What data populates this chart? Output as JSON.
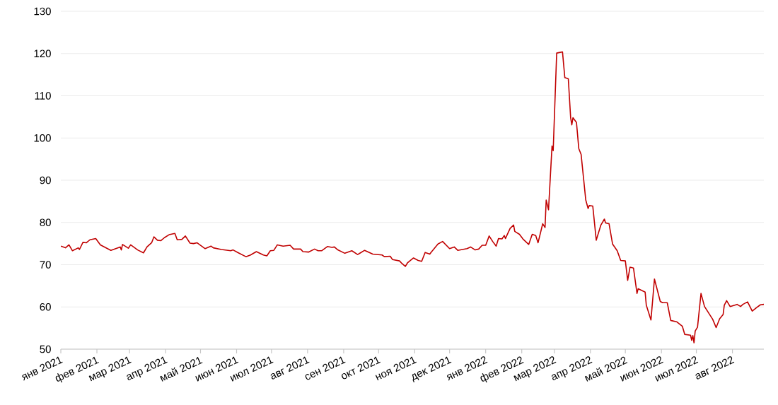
{
  "chart_data": {
    "type": "line",
    "color": "#c00000",
    "grid": "y",
    "xlim": [
      "2021-01-01",
      "2022-08-28"
    ],
    "xticks": [
      {
        "value": "2021-01-01",
        "label": "янв 2021"
      },
      {
        "value": "2021-02-01",
        "label": "фев 2021"
      },
      {
        "value": "2021-03-01",
        "label": "мар 2021"
      },
      {
        "value": "2021-04-01",
        "label": "апр 2021"
      },
      {
        "value": "2021-05-01",
        "label": "май 2021"
      },
      {
        "value": "2021-06-01",
        "label": "июн 2021"
      },
      {
        "value": "2021-07-01",
        "label": "июл 2021"
      },
      {
        "value": "2021-08-01",
        "label": "авг 2021"
      },
      {
        "value": "2021-09-01",
        "label": "сен 2021"
      },
      {
        "value": "2021-10-01",
        "label": "окт 2021"
      },
      {
        "value": "2021-11-01",
        "label": "ноя 2021"
      },
      {
        "value": "2021-12-01",
        "label": "дек 2021"
      },
      {
        "value": "2022-01-01",
        "label": "янв 2022"
      },
      {
        "value": "2022-02-01",
        "label": "фев 2022"
      },
      {
        "value": "2022-03-01",
        "label": "мар 2022"
      },
      {
        "value": "2022-04-01",
        "label": "апр 2022"
      },
      {
        "value": "2022-05-01",
        "label": "май 2022"
      },
      {
        "value": "2022-06-01",
        "label": "июн 2022"
      },
      {
        "value": "2022-07-01",
        "label": "июл 2022"
      },
      {
        "value": "2022-08-01",
        "label": "авг 2022"
      }
    ],
    "ylim": [
      50,
      130
    ],
    "yticks": [
      50,
      60,
      70,
      80,
      90,
      100,
      110,
      120,
      130
    ],
    "x": [
      "2021-01-01",
      "2021-01-05",
      "2021-01-08",
      "2021-01-11",
      "2021-01-16",
      "2021-01-17",
      "2021-01-20",
      "2021-01-23",
      "2021-01-26",
      "2021-01-31",
      "2021-02-04",
      "2021-02-13",
      "2021-02-21",
      "2021-02-22",
      "2021-02-23",
      "2021-02-28",
      "2021-03-02",
      "2021-03-08",
      "2021-03-13",
      "2021-03-16",
      "2021-03-20",
      "2021-03-22",
      "2021-03-25",
      "2021-03-28",
      "2021-03-31",
      "2021-04-04",
      "2021-04-09",
      "2021-04-11",
      "2021-04-15",
      "2021-04-18",
      "2021-04-22",
      "2021-04-25",
      "2021-04-28",
      "2021-04-30",
      "2021-05-05",
      "2021-05-10",
      "2021-05-12",
      "2021-05-19",
      "2021-05-27",
      "2021-05-29",
      "2021-06-02",
      "2021-06-09",
      "2021-06-13",
      "2021-06-18",
      "2021-06-24",
      "2021-06-27",
      "2021-06-30",
      "2021-07-03",
      "2021-07-06",
      "2021-07-11",
      "2021-07-17",
      "2021-07-20",
      "2021-07-26",
      "2021-07-28",
      "2021-08-02",
      "2021-08-07",
      "2021-08-10",
      "2021-08-13",
      "2021-08-18",
      "2021-08-22",
      "2021-08-24",
      "2021-08-27",
      "2021-09-02",
      "2021-09-08",
      "2021-09-13",
      "2021-09-19",
      "2021-09-26",
      "2021-10-04",
      "2021-10-06",
      "2021-10-11",
      "2021-10-13",
      "2021-10-19",
      "2021-10-21",
      "2021-10-24",
      "2021-10-26",
      "2021-10-31",
      "2021-11-04",
      "2021-11-07",
      "2021-11-10",
      "2021-11-14",
      "2021-11-15",
      "2021-11-21",
      "2021-11-25",
      "2021-12-01",
      "2021-12-05",
      "2021-12-08",
      "2021-12-16",
      "2021-12-19",
      "2021-12-23",
      "2021-12-26",
      "2021-12-29",
      "2022-01-01",
      "2022-01-04",
      "2022-01-07",
      "2022-01-10",
      "2022-01-12",
      "2022-01-15",
      "2022-01-17",
      "2022-01-18",
      "2022-01-22",
      "2022-01-25",
      "2022-01-26",
      "2022-01-30",
      "2022-02-02",
      "2022-02-07",
      "2022-02-10",
      "2022-02-13",
      "2022-02-15",
      "2022-02-19",
      "2022-02-21",
      "2022-02-22",
      "2022-02-24",
      "2022-02-27",
      "2022-02-28",
      "2022-03-03",
      "2022-03-08",
      "2022-03-10",
      "2022-03-13",
      "2022-03-15",
      "2022-03-16",
      "2022-03-17",
      "2022-03-20",
      "2022-03-22",
      "2022-03-24",
      "2022-03-28",
      "2022-03-30",
      "2022-03-31",
      "2022-04-03",
      "2022-04-06",
      "2022-04-10",
      "2022-04-13",
      "2022-04-14",
      "2022-04-17",
      "2022-04-20",
      "2022-04-24",
      "2022-04-27",
      "2022-05-01",
      "2022-05-03",
      "2022-05-05",
      "2022-05-08",
      "2022-05-11",
      "2022-05-12",
      "2022-05-18",
      "2022-05-19",
      "2022-05-23",
      "2022-05-26",
      "2022-05-31",
      "2022-06-02",
      "2022-06-06",
      "2022-06-09",
      "2022-06-14",
      "2022-06-19",
      "2022-06-21",
      "2022-06-26",
      "2022-06-27",
      "2022-06-28",
      "2022-06-29",
      "2022-06-30",
      "2022-07-02",
      "2022-07-05",
      "2022-07-08",
      "2022-07-11",
      "2022-07-15",
      "2022-07-18",
      "2022-07-21",
      "2022-07-24",
      "2022-07-25",
      "2022-07-27",
      "2022-07-30",
      "2022-08-05",
      "2022-08-08",
      "2022-08-10",
      "2022-08-14",
      "2022-08-18",
      "2022-08-22",
      "2022-08-25",
      "2022-08-28"
    ],
    "values": [
      74.4,
      74.0,
      74.7,
      73.3,
      74.0,
      73.6,
      75.3,
      75.2,
      75.9,
      76.2,
      74.7,
      73.4,
      74.2,
      73.5,
      74.8,
      73.9,
      74.7,
      73.5,
      72.8,
      74.2,
      75.2,
      76.6,
      75.8,
      75.7,
      76.4,
      77.1,
      77.4,
      75.9,
      76.0,
      76.8,
      75.1,
      75.0,
      75.2,
      74.8,
      73.8,
      74.4,
      74.0,
      73.6,
      73.3,
      73.5,
      72.9,
      71.9,
      72.3,
      73.1,
      72.3,
      72.1,
      73.3,
      73.4,
      74.7,
      74.4,
      74.6,
      73.7,
      73.7,
      73.1,
      73.0,
      73.7,
      73.3,
      73.3,
      74.3,
      74.1,
      74.2,
      73.5,
      72.7,
      73.3,
      72.4,
      73.4,
      72.5,
      72.3,
      71.9,
      72.0,
      71.2,
      70.9,
      70.3,
      69.6,
      70.5,
      71.6,
      71.0,
      70.8,
      72.9,
      72.5,
      72.9,
      74.9,
      75.5,
      73.8,
      74.2,
      73.4,
      73.8,
      74.2,
      73.5,
      73.7,
      74.6,
      74.6,
      76.8,
      75.5,
      74.4,
      76.2,
      76.1,
      76.9,
      76.2,
      78.6,
      79.4,
      77.9,
      77.2,
      76.1,
      74.8,
      77.2,
      76.9,
      75.2,
      79.7,
      78.8,
      85.3,
      83.0,
      98.1,
      97.0,
      120.1,
      120.4,
      114.3,
      114.0,
      104.8,
      103.1,
      104.8,
      103.7,
      97.5,
      96.1,
      85.3,
      83.3,
      84.0,
      83.9,
      75.8,
      79.4,
      80.8,
      79.9,
      79.7,
      74.9,
      73.3,
      71.0,
      70.9,
      66.3,
      69.4,
      69.2,
      63.2,
      64.3,
      63.5,
      60.4,
      56.9,
      66.6,
      61.3,
      61.0,
      61.0,
      56.8,
      56.5,
      55.4,
      53.5,
      53.3,
      52.1,
      53.2,
      51.5,
      54.3,
      55.2,
      63.2,
      60.1,
      58.8,
      57.1,
      55.1,
      57.2,
      58.2,
      60.4,
      61.5,
      60.1,
      60.6,
      60.1,
      60.6,
      61.2,
      59.0,
      59.9,
      60.5,
      60.6
    ]
  }
}
